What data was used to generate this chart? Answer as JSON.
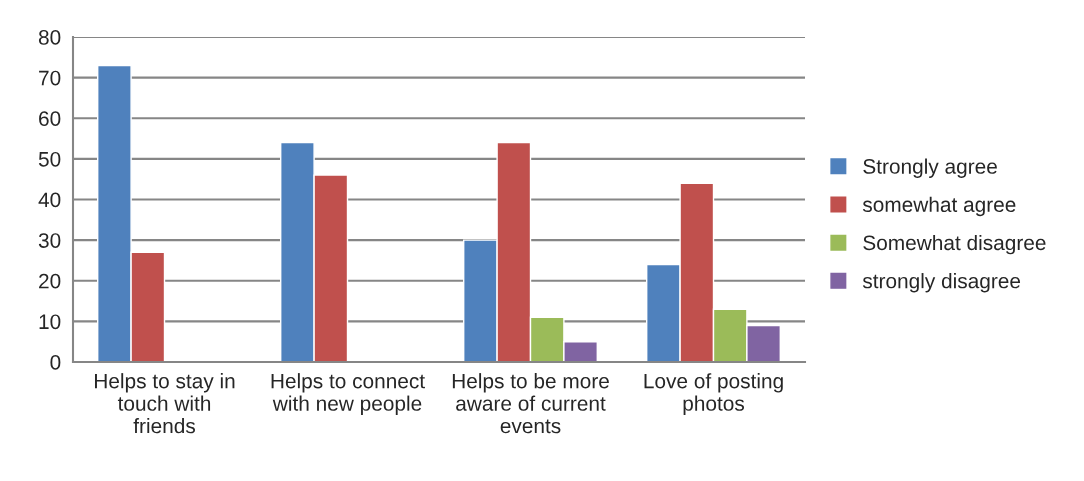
{
  "chart_data": {
    "type": "bar",
    "categories": [
      "Helps to stay in\ntouch with\nfriends",
      "Helps to connect\nwith new people",
      "Helps to be more\naware of current\nevents",
      "Love of posting\nphotos"
    ],
    "series": [
      {
        "name": "Strongly agree",
        "color": "#4f81bd",
        "values": [
          73,
          54,
          30,
          24
        ]
      },
      {
        "name": "somewhat agree",
        "color": "#c0504d",
        "values": [
          27,
          46,
          54,
          44
        ]
      },
      {
        "name": "Somewhat disagree",
        "color": "#9bbb59",
        "values": [
          null,
          null,
          11,
          13
        ]
      },
      {
        "name": "strongly disagree",
        "color": "#8064a2",
        "values": [
          null,
          null,
          5,
          9
        ]
      }
    ],
    "ylim": [
      0,
      80
    ],
    "yticks": [
      0,
      10,
      20,
      30,
      40,
      50,
      60,
      70,
      80
    ],
    "grid": "y",
    "legend": "right"
  }
}
